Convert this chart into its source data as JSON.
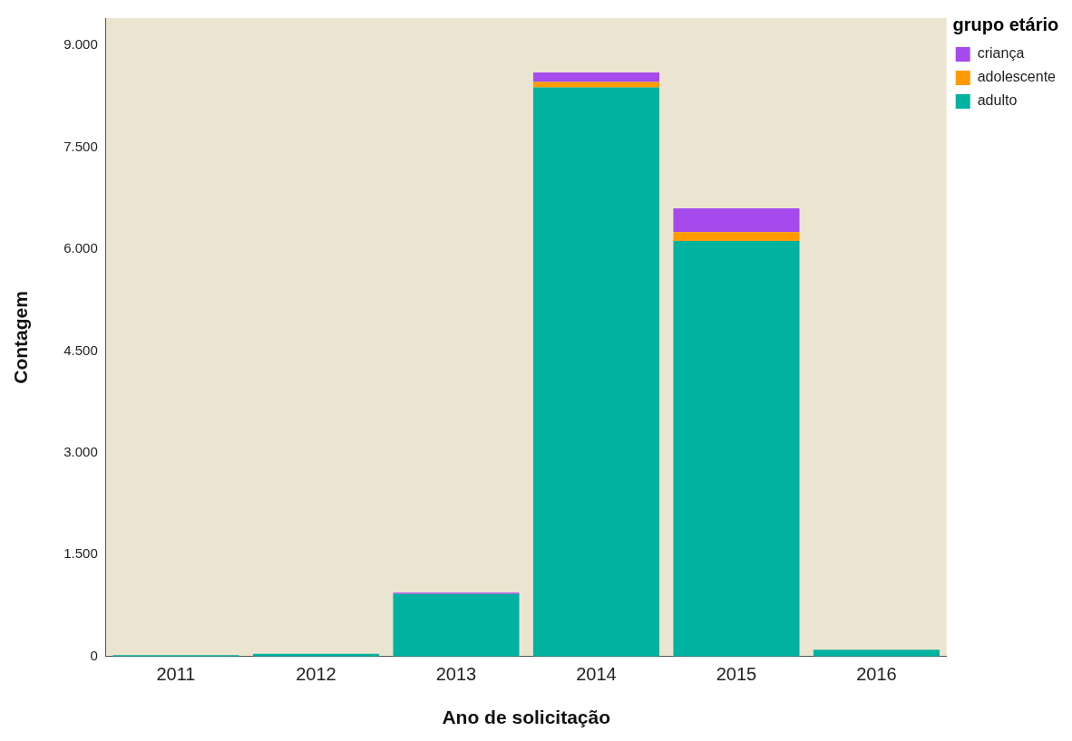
{
  "chart_data": {
    "type": "bar",
    "stacked": true,
    "xlabel": "Ano de solicitação",
    "ylabel": "Contagem",
    "legend_title": "grupo etário",
    "legend": "top right",
    "grid": false,
    "categories": [
      "2011",
      "2012",
      "2013",
      "2014",
      "2015",
      "2016"
    ],
    "series": [
      {
        "name": "adulto",
        "color": "#00b2a0",
        "values": [
          20,
          40,
          920,
          8380,
          6120,
          100
        ]
      },
      {
        "name": "adolescente",
        "color": "#ff9a00",
        "values": [
          0,
          0,
          null,
          80,
          130,
          0
        ]
      },
      {
        "name": "criança",
        "color": "#a64aee",
        "values": [
          0,
          0,
          20,
          140,
          350,
          0
        ]
      }
    ],
    "ylim": [
      0,
      9400
    ],
    "yticks": [
      {
        "value": 0,
        "label": "0"
      },
      {
        "value": 1500,
        "label": "1.500"
      },
      {
        "value": 3000,
        "label": "3.000"
      },
      {
        "value": 4500,
        "label": "4.500"
      },
      {
        "value": 6000,
        "label": "6.000"
      },
      {
        "value": 7500,
        "label": "7.500"
      },
      {
        "value": 9000,
        "label": "9.000"
      }
    ]
  }
}
